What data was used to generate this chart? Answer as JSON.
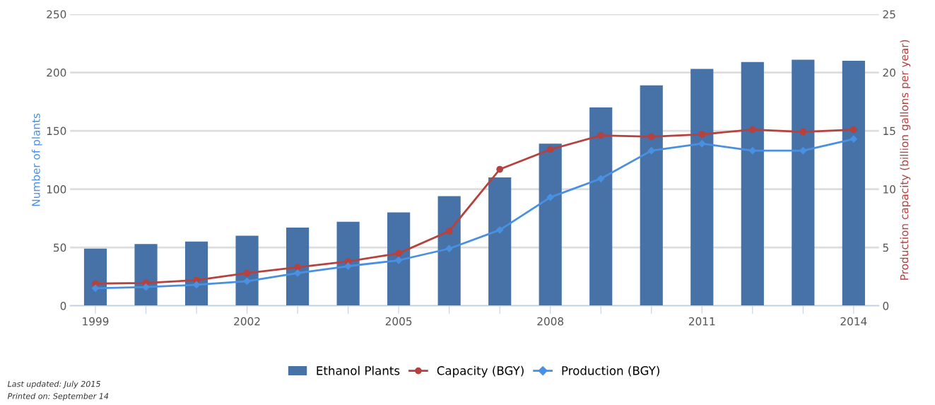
{
  "chart_data": {
    "type": "bar",
    "categories": [
      "1999",
      null,
      null,
      "2002",
      null,
      null,
      "2005",
      null,
      null,
      "2008",
      null,
      null,
      "2011",
      null,
      null,
      "2014"
    ],
    "ylabel": "Number of plants",
    "y2label": "Production capacity (billion gallons per year)",
    "ylim": [
      0,
      250
    ],
    "yticks": [
      0,
      50,
      100,
      150,
      200,
      250
    ],
    "y2lim": [
      0,
      25
    ],
    "y2ticks": [
      0,
      5,
      10,
      15,
      20,
      25
    ],
    "grid": "y",
    "legend": "bottom",
    "series": [
      {
        "name": "Ethanol Plants",
        "color": "#4672a8",
        "values": [
          49,
          53,
          55,
          60,
          67,
          72,
          80,
          94,
          110,
          139,
          170,
          189,
          203,
          209,
          211,
          210
        ]
      },
      {
        "name": "Capacity (BGY)",
        "type": "line",
        "axis": "y2",
        "marker": "circle",
        "color": "#b5423f",
        "values": [
          1.9,
          1.95,
          2.2,
          2.8,
          3.3,
          3.8,
          4.5,
          6.4,
          11.7,
          13.4,
          14.6,
          14.5,
          14.7,
          15.1,
          14.9,
          15.1
        ]
      },
      {
        "name": "Production (BGY)",
        "type": "line",
        "axis": "y2",
        "marker": "diamond",
        "color": "#4a90e2",
        "values": [
          1.5,
          1.6,
          1.8,
          2.1,
          2.8,
          3.4,
          3.9,
          4.9,
          6.5,
          9.3,
          10.9,
          13.3,
          13.9,
          13.3,
          13.3,
          14.3
        ]
      }
    ],
    "annotations": [
      "Last updated: July 2015",
      "Printed on: September 14"
    ]
  }
}
